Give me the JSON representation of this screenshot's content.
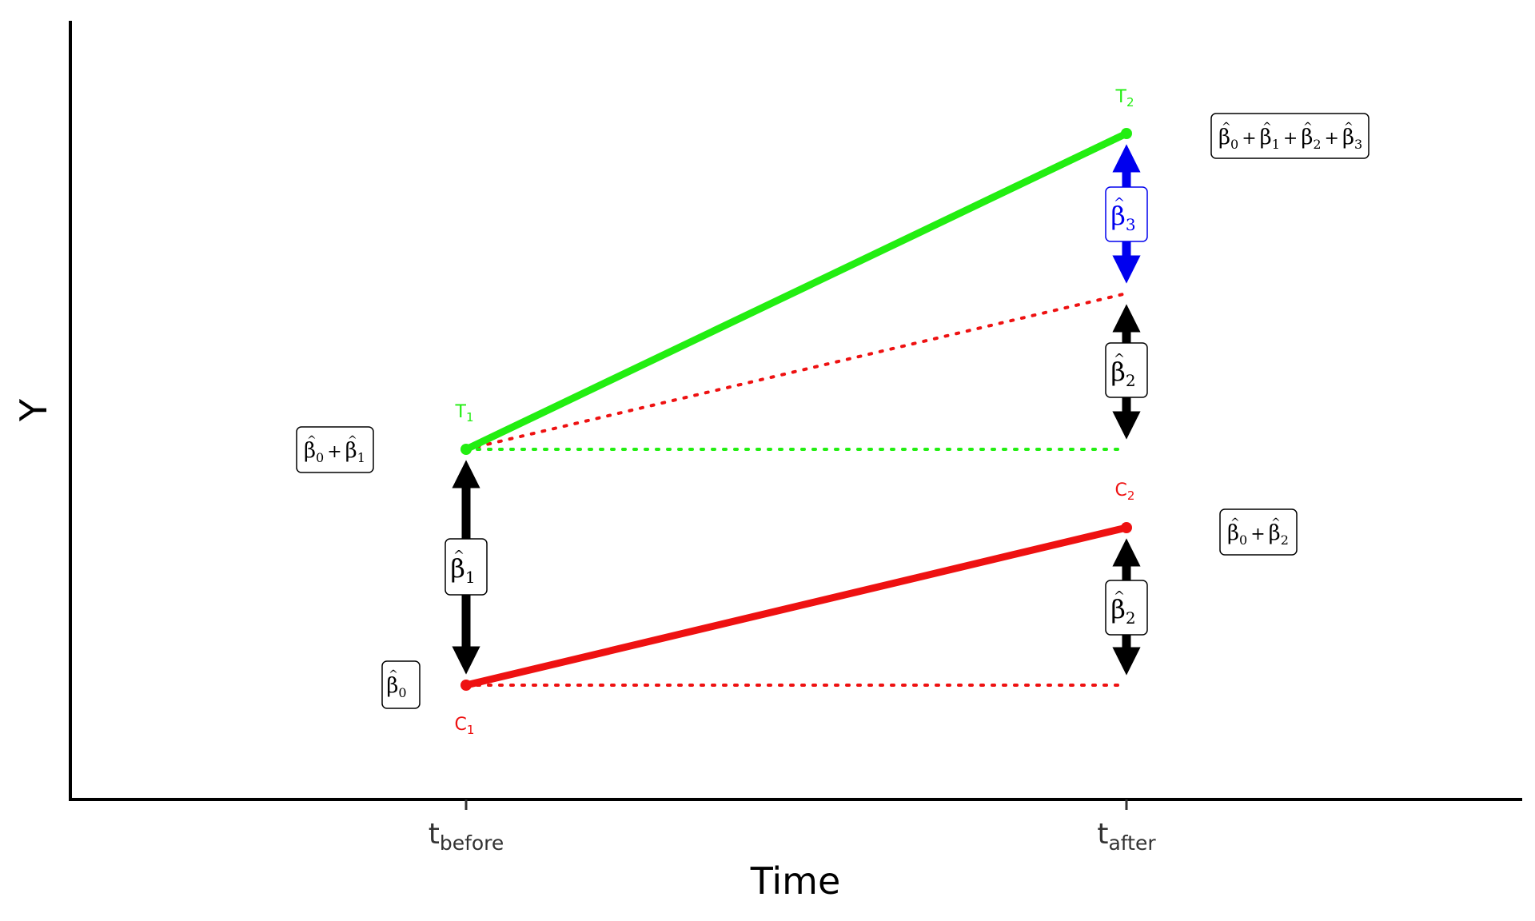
{
  "axes": {
    "x_title": "Time",
    "y_title": "Y",
    "ticks": [
      {
        "main": "t",
        "sub": "before"
      },
      {
        "main": "t",
        "sub": "after"
      }
    ]
  },
  "colors": {
    "treatment": "#22ee11",
    "control": "#ee1111",
    "beta3_arrow": "#0000ee",
    "arrow": "#000000",
    "axis": "#000000",
    "tick_text": "#333333"
  },
  "points": [
    {
      "id": "T1",
      "main": "T",
      "sub": "1",
      "series": "treatment",
      "time": 0,
      "value": 0.55
    },
    {
      "id": "T2",
      "main": "T",
      "sub": "2",
      "series": "treatment",
      "time": 1,
      "value": 0.85
    },
    {
      "id": "C1",
      "main": "C",
      "sub": "1",
      "series": "control",
      "time": 0,
      "value": 0.15
    },
    {
      "id": "C2",
      "main": "C",
      "sub": "2",
      "series": "control",
      "time": 1,
      "value": 0.4
    }
  ],
  "labels": [
    {
      "id": "b0",
      "terms": [
        "0"
      ],
      "side": "left",
      "anchor": "C1"
    },
    {
      "id": "b0b1",
      "terms": [
        "0",
        "1"
      ],
      "side": "left",
      "anchor": "T1"
    },
    {
      "id": "b0b2",
      "terms": [
        "0",
        "2"
      ],
      "side": "right",
      "anchor": "C2"
    },
    {
      "id": "b0b1b2b3",
      "terms": [
        "0",
        "1",
        "2",
        "3"
      ],
      "side": "right",
      "anchor": "T2"
    }
  ],
  "symbol": "β",
  "plus": "+",
  "arrow_labels": [
    {
      "id": "a-beta1",
      "sub": "1"
    },
    {
      "id": "a-beta2-control",
      "sub": "2"
    },
    {
      "id": "a-beta2-treatment",
      "sub": "2"
    },
    {
      "id": "a-beta3",
      "sub": "3"
    }
  ]
}
